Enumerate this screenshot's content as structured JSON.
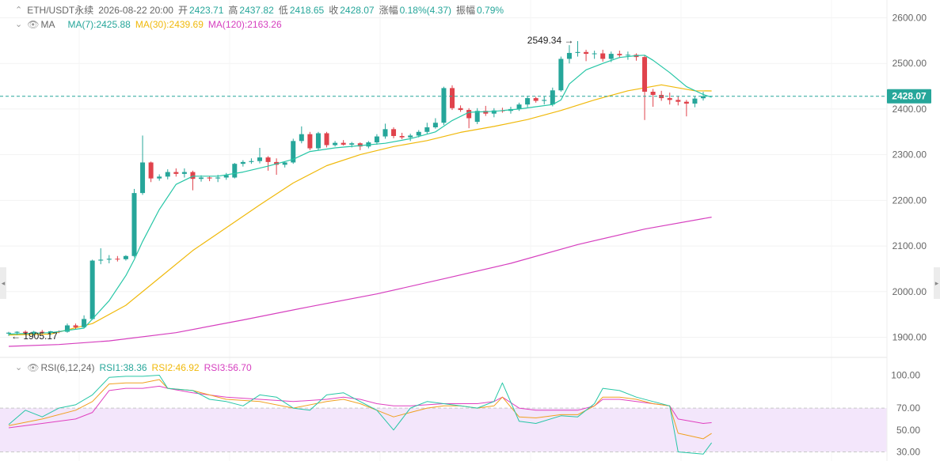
{
  "header": {
    "symbol": "ETH/USDT永续",
    "datetime": "2026-08-22 20:00",
    "open_label": "开",
    "open": "2423.71",
    "high_label": "高",
    "high": "2437.82",
    "low_label": "低",
    "low": "2418.65",
    "close_label": "收",
    "close": "2428.07",
    "change_label": "涨幅",
    "change": "0.18%(4.37)",
    "amplitude_label": "振幅",
    "amplitude": "0.79%"
  },
  "ma_legend": {
    "title": "MA",
    "ma7": "MA(7):2425.88",
    "ma30": "MA(30):2439.69",
    "ma120": "MA(120):2163.26"
  },
  "rsi_legend": {
    "title": "RSI(6,12,24)",
    "rsi1": "RSI1:38.36",
    "rsi2": "RSI2:46.92",
    "rsi3": "RSI3:56.70"
  },
  "colors": {
    "up": "#26a69a",
    "down": "#e0434c",
    "ma7": "#26c6a6",
    "ma30": "#f0b90b",
    "ma120": "#d63fbf",
    "rsi1": "#26c6a6",
    "rsi2": "#f0a020",
    "rsi3": "#e040c0",
    "rsi_band": "#f3e6fb",
    "last_price_bg": "#26a69a"
  },
  "icons": [
    "chevron-up-icon",
    "chevron-down-icon",
    "eye-icon",
    "collapse-left-icon",
    "collapse-right-icon"
  ],
  "chart_data": [
    {
      "type": "candlestick",
      "y_ticks": [
        "2600.00",
        "2500.00",
        "2400.00",
        "2300.00",
        "2200.00",
        "2100.00",
        "2000.00",
        "1900.00"
      ],
      "ylim": [
        1870,
        2615
      ],
      "last_price": "2428.07",
      "high_marker": "2549.34",
      "low_marker": "1905.17",
      "candles": [
        {
          "o": 1908,
          "h": 1912,
          "l": 1903,
          "c": 1910
        },
        {
          "o": 1910,
          "h": 1913,
          "l": 1905,
          "c": 1912
        },
        {
          "o": 1912,
          "h": 1915,
          "l": 1906,
          "c": 1908
        },
        {
          "o": 1908,
          "h": 1914,
          "l": 1904,
          "c": 1912
        },
        {
          "o": 1912,
          "h": 1916,
          "l": 1907,
          "c": 1910
        },
        {
          "o": 1910,
          "h": 1914,
          "l": 1905,
          "c": 1913
        },
        {
          "o": 1913,
          "h": 1915,
          "l": 1909,
          "c": 1912
        },
        {
          "o": 1912,
          "h": 1930,
          "l": 1910,
          "c": 1926
        },
        {
          "o": 1926,
          "h": 1930,
          "l": 1918,
          "c": 1922
        },
        {
          "o": 1922,
          "h": 1948,
          "l": 1920,
          "c": 1940
        },
        {
          "o": 1940,
          "h": 2070,
          "l": 1938,
          "c": 2068
        },
        {
          "o": 2068,
          "h": 2095,
          "l": 2060,
          "c": 2070
        },
        {
          "o": 2070,
          "h": 2080,
          "l": 2062,
          "c": 2072
        },
        {
          "o": 2072,
          "h": 2078,
          "l": 2066,
          "c": 2071
        },
        {
          "o": 2071,
          "h": 2080,
          "l": 2068,
          "c": 2078
        },
        {
          "o": 2078,
          "h": 2225,
          "l": 2075,
          "c": 2216
        },
        {
          "o": 2216,
          "h": 2342,
          "l": 2212,
          "c": 2283
        },
        {
          "o": 2283,
          "h": 2285,
          "l": 2240,
          "c": 2248
        },
        {
          "o": 2248,
          "h": 2257,
          "l": 2243,
          "c": 2252
        },
        {
          "o": 2252,
          "h": 2268,
          "l": 2246,
          "c": 2262
        },
        {
          "o": 2262,
          "h": 2270,
          "l": 2252,
          "c": 2258
        },
        {
          "o": 2258,
          "h": 2270,
          "l": 2250,
          "c": 2262
        },
        {
          "o": 2262,
          "h": 2265,
          "l": 2222,
          "c": 2247
        },
        {
          "o": 2247,
          "h": 2255,
          "l": 2241,
          "c": 2250
        },
        {
          "o": 2250,
          "h": 2253,
          "l": 2242,
          "c": 2248
        },
        {
          "o": 2248,
          "h": 2256,
          "l": 2240,
          "c": 2250
        },
        {
          "o": 2250,
          "h": 2260,
          "l": 2245,
          "c": 2255
        },
        {
          "o": 2250,
          "h": 2282,
          "l": 2248,
          "c": 2280
        },
        {
          "o": 2280,
          "h": 2288,
          "l": 2274,
          "c": 2284
        },
        {
          "o": 2284,
          "h": 2292,
          "l": 2280,
          "c": 2286
        },
        {
          "o": 2286,
          "h": 2315,
          "l": 2281,
          "c": 2294
        },
        {
          "o": 2294,
          "h": 2297,
          "l": 2265,
          "c": 2284
        },
        {
          "o": 2284,
          "h": 2292,
          "l": 2256,
          "c": 2278
        },
        {
          "o": 2278,
          "h": 2285,
          "l": 2272,
          "c": 2283
        },
        {
          "o": 2283,
          "h": 2335,
          "l": 2280,
          "c": 2330
        },
        {
          "o": 2330,
          "h": 2362,
          "l": 2325,
          "c": 2345
        },
        {
          "o": 2345,
          "h": 2350,
          "l": 2310,
          "c": 2314
        },
        {
          "o": 2314,
          "h": 2350,
          "l": 2310,
          "c": 2347
        },
        {
          "o": 2347,
          "h": 2350,
          "l": 2316,
          "c": 2321
        },
        {
          "o": 2321,
          "h": 2330,
          "l": 2318,
          "c": 2326
        },
        {
          "o": 2326,
          "h": 2332,
          "l": 2320,
          "c": 2322
        },
        {
          "o": 2322,
          "h": 2328,
          "l": 2316,
          "c": 2325
        },
        {
          "o": 2325,
          "h": 2327,
          "l": 2310,
          "c": 2318
        },
        {
          "o": 2318,
          "h": 2330,
          "l": 2314,
          "c": 2327
        },
        {
          "o": 2327,
          "h": 2345,
          "l": 2322,
          "c": 2340
        },
        {
          "o": 2340,
          "h": 2368,
          "l": 2335,
          "c": 2356
        },
        {
          "o": 2356,
          "h": 2360,
          "l": 2336,
          "c": 2341
        },
        {
          "o": 2341,
          "h": 2348,
          "l": 2334,
          "c": 2338
        },
        {
          "o": 2338,
          "h": 2346,
          "l": 2330,
          "c": 2342
        },
        {
          "o": 2342,
          "h": 2354,
          "l": 2338,
          "c": 2350
        },
        {
          "o": 2350,
          "h": 2370,
          "l": 2346,
          "c": 2360
        },
        {
          "o": 2360,
          "h": 2380,
          "l": 2357,
          "c": 2370
        },
        {
          "o": 2370,
          "h": 2449,
          "l": 2365,
          "c": 2446
        },
        {
          "o": 2446,
          "h": 2452,
          "l": 2398,
          "c": 2402
        },
        {
          "o": 2402,
          "h": 2408,
          "l": 2394,
          "c": 2398
        },
        {
          "o": 2398,
          "h": 2402,
          "l": 2358,
          "c": 2380
        },
        {
          "o": 2372,
          "h": 2402,
          "l": 2367,
          "c": 2396
        },
        {
          "o": 2396,
          "h": 2407,
          "l": 2385,
          "c": 2390
        },
        {
          "o": 2390,
          "h": 2402,
          "l": 2382,
          "c": 2397
        },
        {
          "o": 2397,
          "h": 2403,
          "l": 2392,
          "c": 2396
        },
        {
          "o": 2396,
          "h": 2405,
          "l": 2390,
          "c": 2400
        },
        {
          "o": 2400,
          "h": 2414,
          "l": 2396,
          "c": 2410
        },
        {
          "o": 2410,
          "h": 2428,
          "l": 2404,
          "c": 2424
        },
        {
          "o": 2424,
          "h": 2427,
          "l": 2414,
          "c": 2418
        },
        {
          "o": 2418,
          "h": 2428,
          "l": 2410,
          "c": 2420
        },
        {
          "o": 2410,
          "h": 2447,
          "l": 2406,
          "c": 2441
        },
        {
          "o": 2441,
          "h": 2515,
          "l": 2438,
          "c": 2510
        },
        {
          "o": 2510,
          "h": 2540,
          "l": 2500,
          "c": 2523
        },
        {
          "o": 2523,
          "h": 2549,
          "l": 2515,
          "c": 2525
        },
        {
          "o": 2525,
          "h": 2530,
          "l": 2505,
          "c": 2521
        },
        {
          "o": 2521,
          "h": 2528,
          "l": 2510,
          "c": 2522
        },
        {
          "o": 2522,
          "h": 2530,
          "l": 2504,
          "c": 2510
        },
        {
          "o": 2510,
          "h": 2526,
          "l": 2503,
          "c": 2521
        },
        {
          "o": 2521,
          "h": 2528,
          "l": 2512,
          "c": 2518
        },
        {
          "o": 2518,
          "h": 2526,
          "l": 2508,
          "c": 2519
        },
        {
          "o": 2519,
          "h": 2522,
          "l": 2506,
          "c": 2514
        },
        {
          "o": 2514,
          "h": 2518,
          "l": 2376,
          "c": 2438
        },
        {
          "o": 2438,
          "h": 2444,
          "l": 2405,
          "c": 2431
        },
        {
          "o": 2431,
          "h": 2440,
          "l": 2418,
          "c": 2424
        },
        {
          "o": 2424,
          "h": 2436,
          "l": 2410,
          "c": 2420
        },
        {
          "o": 2420,
          "h": 2428,
          "l": 2408,
          "c": 2416
        },
        {
          "o": 2416,
          "h": 2420,
          "l": 2384,
          "c": 2412
        },
        {
          "o": 2412,
          "h": 2428,
          "l": 2404,
          "c": 2423
        },
        {
          "o": 2423.71,
          "h": 2437.82,
          "l": 2418.65,
          "c": 2428.07
        }
      ],
      "ma7": [
        [
          0,
          1907
        ],
        [
          5,
          1910
        ],
        [
          9,
          1920
        ],
        [
          10,
          1940
        ],
        [
          12,
          1980
        ],
        [
          14,
          2035
        ],
        [
          15,
          2070
        ],
        [
          16,
          2110
        ],
        [
          18,
          2180
        ],
        [
          20,
          2235
        ],
        [
          22,
          2253
        ],
        [
          25,
          2253
        ],
        [
          28,
          2262
        ],
        [
          31,
          2275
        ],
        [
          34,
          2290
        ],
        [
          36,
          2307
        ],
        [
          39,
          2315
        ],
        [
          42,
          2320
        ],
        [
          45,
          2325
        ],
        [
          48,
          2335
        ],
        [
          51,
          2350
        ],
        [
          53,
          2375
        ],
        [
          55,
          2393
        ],
        [
          58,
          2395
        ],
        [
          61,
          2400
        ],
        [
          63,
          2405
        ],
        [
          65,
          2410
        ],
        [
          66,
          2420
        ],
        [
          67,
          2455
        ],
        [
          69,
          2486
        ],
        [
          71,
          2500
        ],
        [
          73,
          2513
        ],
        [
          75,
          2517
        ],
        [
          76,
          2518
        ],
        [
          77,
          2507
        ],
        [
          79,
          2480
        ],
        [
          81,
          2449
        ],
        [
          83,
          2432
        ],
        [
          84,
          2426
        ]
      ],
      "ma30": [
        [
          0,
          1905
        ],
        [
          5,
          1907
        ],
        [
          10,
          1930
        ],
        [
          14,
          1970
        ],
        [
          18,
          2030
        ],
        [
          22,
          2090
        ],
        [
          26,
          2140
        ],
        [
          30,
          2190
        ],
        [
          34,
          2238
        ],
        [
          38,
          2276
        ],
        [
          42,
          2300
        ],
        [
          46,
          2318
        ],
        [
          50,
          2331
        ],
        [
          54,
          2349
        ],
        [
          58,
          2362
        ],
        [
          62,
          2377
        ],
        [
          66,
          2397
        ],
        [
          70,
          2420
        ],
        [
          74,
          2440
        ],
        [
          78,
          2453
        ],
        [
          82,
          2440
        ],
        [
          84,
          2439.69
        ]
      ],
      "ma120": [
        [
          0,
          1880
        ],
        [
          6,
          1884
        ],
        [
          12,
          1892
        ],
        [
          20,
          1910
        ],
        [
          28,
          1938
        ],
        [
          36,
          1967
        ],
        [
          44,
          1995
        ],
        [
          52,
          2028
        ],
        [
          60,
          2062
        ],
        [
          68,
          2103
        ],
        [
          76,
          2137
        ],
        [
          84,
          2163.26
        ]
      ]
    },
    {
      "type": "line",
      "y_ticks": [
        "100.00",
        "70.00",
        "50.00",
        "30.00"
      ],
      "ylim": [
        28,
        102
      ],
      "overbought": 70,
      "oversold": 30,
      "rsi1": [
        [
          0,
          55
        ],
        [
          2,
          68
        ],
        [
          4,
          62
        ],
        [
          6,
          70
        ],
        [
          8,
          73
        ],
        [
          10,
          82
        ],
        [
          12,
          98
        ],
        [
          14,
          99
        ],
        [
          16,
          99
        ],
        [
          18,
          100
        ],
        [
          19,
          88
        ],
        [
          22,
          86
        ],
        [
          24,
          78
        ],
        [
          26,
          76
        ],
        [
          28,
          72
        ],
        [
          30,
          82
        ],
        [
          32,
          80
        ],
        [
          34,
          70
        ],
        [
          36,
          68
        ],
        [
          38,
          82
        ],
        [
          40,
          84
        ],
        [
          42,
          76
        ],
        [
          44,
          68
        ],
        [
          46,
          50
        ],
        [
          48,
          70
        ],
        [
          50,
          76
        ],
        [
          52,
          74
        ],
        [
          54,
          72
        ],
        [
          56,
          70
        ],
        [
          58,
          76
        ],
        [
          59,
          93
        ],
        [
          61,
          58
        ],
        [
          63,
          56
        ],
        [
          66,
          63
        ],
        [
          68,
          62
        ],
        [
          70,
          74
        ],
        [
          71,
          88
        ],
        [
          73,
          86
        ],
        [
          75,
          80
        ],
        [
          77,
          76
        ],
        [
          79,
          72
        ],
        [
          80,
          30
        ],
        [
          83,
          28
        ],
        [
          84,
          38.36
        ]
      ],
      "rsi2": [
        [
          0,
          54
        ],
        [
          4,
          60
        ],
        [
          8,
          68
        ],
        [
          10,
          76
        ],
        [
          12,
          92
        ],
        [
          14,
          93
        ],
        [
          16,
          93
        ],
        [
          18,
          96
        ],
        [
          19,
          88
        ],
        [
          22,
          86
        ],
        [
          26,
          78
        ],
        [
          30,
          76
        ],
        [
          34,
          70
        ],
        [
          38,
          76
        ],
        [
          40,
          78
        ],
        [
          42,
          74
        ],
        [
          44,
          68
        ],
        [
          46,
          62
        ],
        [
          48,
          66
        ],
        [
          50,
          70
        ],
        [
          52,
          72
        ],
        [
          54,
          72
        ],
        [
          56,
          70
        ],
        [
          58,
          72
        ],
        [
          59,
          80
        ],
        [
          61,
          62
        ],
        [
          63,
          61
        ],
        [
          66,
          64
        ],
        [
          68,
          64
        ],
        [
          70,
          72
        ],
        [
          71,
          80
        ],
        [
          73,
          80
        ],
        [
          75,
          78
        ],
        [
          77,
          74
        ],
        [
          79,
          72
        ],
        [
          80,
          47
        ],
        [
          83,
          42
        ],
        [
          84,
          46.92
        ]
      ],
      "rsi3": [
        [
          0,
          52
        ],
        [
          4,
          56
        ],
        [
          8,
          60
        ],
        [
          10,
          66
        ],
        [
          12,
          86
        ],
        [
          14,
          88
        ],
        [
          16,
          88
        ],
        [
          18,
          90
        ],
        [
          19,
          88
        ],
        [
          22,
          84
        ],
        [
          26,
          80
        ],
        [
          30,
          78
        ],
        [
          34,
          76
        ],
        [
          38,
          78
        ],
        [
          40,
          80
        ],
        [
          42,
          78
        ],
        [
          44,
          74
        ],
        [
          46,
          72
        ],
        [
          48,
          72
        ],
        [
          50,
          73
        ],
        [
          52,
          74
        ],
        [
          54,
          74
        ],
        [
          56,
          74
        ],
        [
          58,
          76
        ],
        [
          59,
          80
        ],
        [
          61,
          70
        ],
        [
          63,
          68
        ],
        [
          66,
          68
        ],
        [
          68,
          68
        ],
        [
          70,
          72
        ],
        [
          71,
          78
        ],
        [
          73,
          78
        ],
        [
          75,
          76
        ],
        [
          77,
          74
        ],
        [
          79,
          72
        ],
        [
          80,
          60
        ],
        [
          83,
          56
        ],
        [
          84,
          56.7
        ]
      ]
    }
  ]
}
